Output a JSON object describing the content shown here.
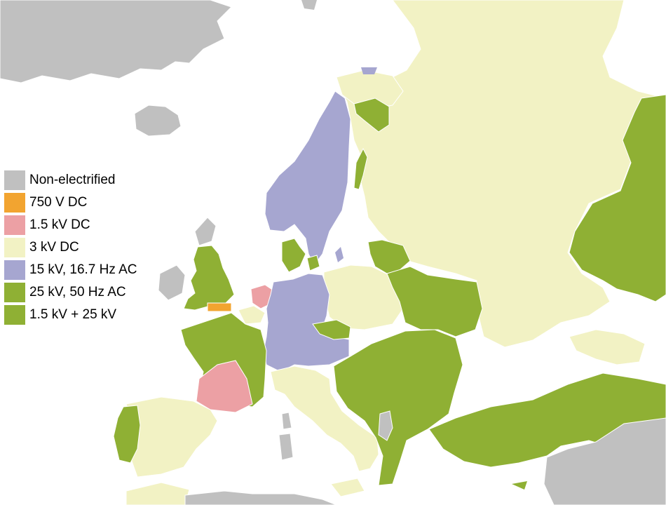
{
  "colors": {
    "sea": "#ffffff",
    "border": "#ffffff",
    "non_electrified": "#c0c0c0",
    "dc_750v": "#f2a430",
    "dc_1_5kv": "#eca0a4",
    "dc_3kv": "#f2f2c4",
    "ac_15kv": "#a6a6d0",
    "ac_25kv": "#8fb034",
    "ac_1_5_25kv": "#8fb034"
  },
  "legend": {
    "items": [
      {
        "label": "Non-electrified",
        "color": "#c0c0c0"
      },
      {
        "label": "750 V DC",
        "color": "#f2a430"
      },
      {
        "label": "1.5 kV DC",
        "color": "#eca0a4"
      },
      {
        "label": "3 kV DC",
        "color": "#f2f2c4"
      },
      {
        "label": "15 kV, 16.7 Hz AC",
        "color": "#a6a6d0"
      },
      {
        "label": "25 kV, 50 Hz AC",
        "color": "#8fb034"
      },
      {
        "label": "1.5 kV + 25 kV",
        "color": "#8fb034"
      }
    ]
  }
}
